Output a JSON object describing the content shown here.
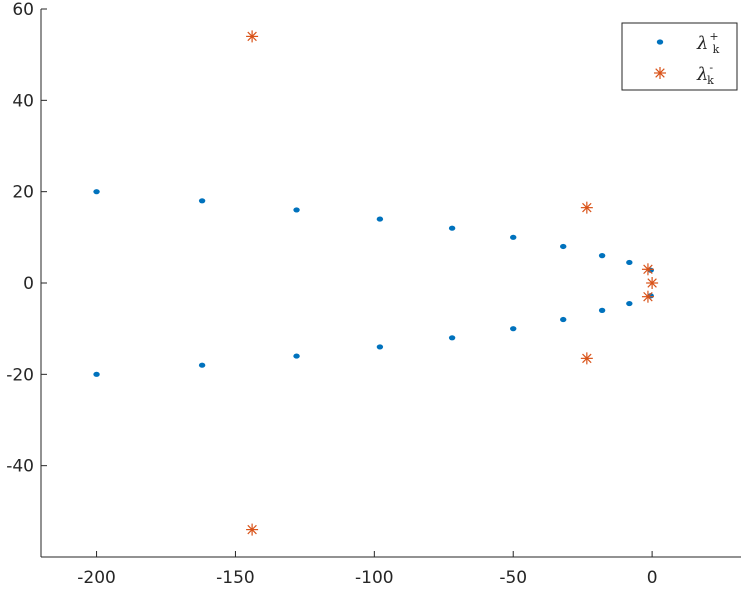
{
  "chart_data": {
    "type": "scatter",
    "xlim": [
      -220,
      32
    ],
    "ylim": [
      -60,
      60
    ],
    "x_ticks": [
      -200,
      -150,
      -100,
      -50,
      0
    ],
    "x_tick_labels": [
      "-200",
      "-150",
      "-100",
      "-50",
      "0"
    ],
    "y_ticks": [
      -40,
      -20,
      0,
      20,
      40,
      60
    ],
    "y_tick_labels": [
      "-40",
      "-20",
      "0",
      "20",
      "40",
      "60"
    ],
    "grid": false,
    "legend_position": "top-right",
    "series": [
      {
        "name": "λ_k^+",
        "symbol": "λ",
        "subscript": "k",
        "superscript": "+",
        "marker": "dot",
        "color": "#0072BD",
        "points": [
          [
            -200,
            20
          ],
          [
            -162,
            18
          ],
          [
            -128,
            16
          ],
          [
            -98,
            14
          ],
          [
            -72,
            12
          ],
          [
            -50,
            10
          ],
          [
            -32,
            8
          ],
          [
            -18,
            6
          ],
          [
            -8.2,
            4.5
          ],
          [
            -0.5,
            2.8
          ],
          [
            -200,
            -20
          ],
          [
            -162,
            -18
          ],
          [
            -128,
            -16
          ],
          [
            -98,
            -14
          ],
          [
            -72,
            -12
          ],
          [
            -50,
            -10
          ],
          [
            -32,
            -8
          ],
          [
            -18,
            -6
          ],
          [
            -8.2,
            -4.5
          ],
          [
            -0.5,
            -2.8
          ]
        ]
      },
      {
        "name": "λ_k^-",
        "symbol": "λ",
        "subscript": "k",
        "superscript": "-",
        "marker": "asterisk",
        "color": "#D95319",
        "points": [
          [
            -144,
            54
          ],
          [
            -144,
            -54
          ],
          [
            -23.5,
            16.5
          ],
          [
            -23.5,
            -16.5
          ],
          [
            -1.5,
            3
          ],
          [
            -1.5,
            -3
          ],
          [
            0,
            0
          ]
        ]
      }
    ]
  }
}
